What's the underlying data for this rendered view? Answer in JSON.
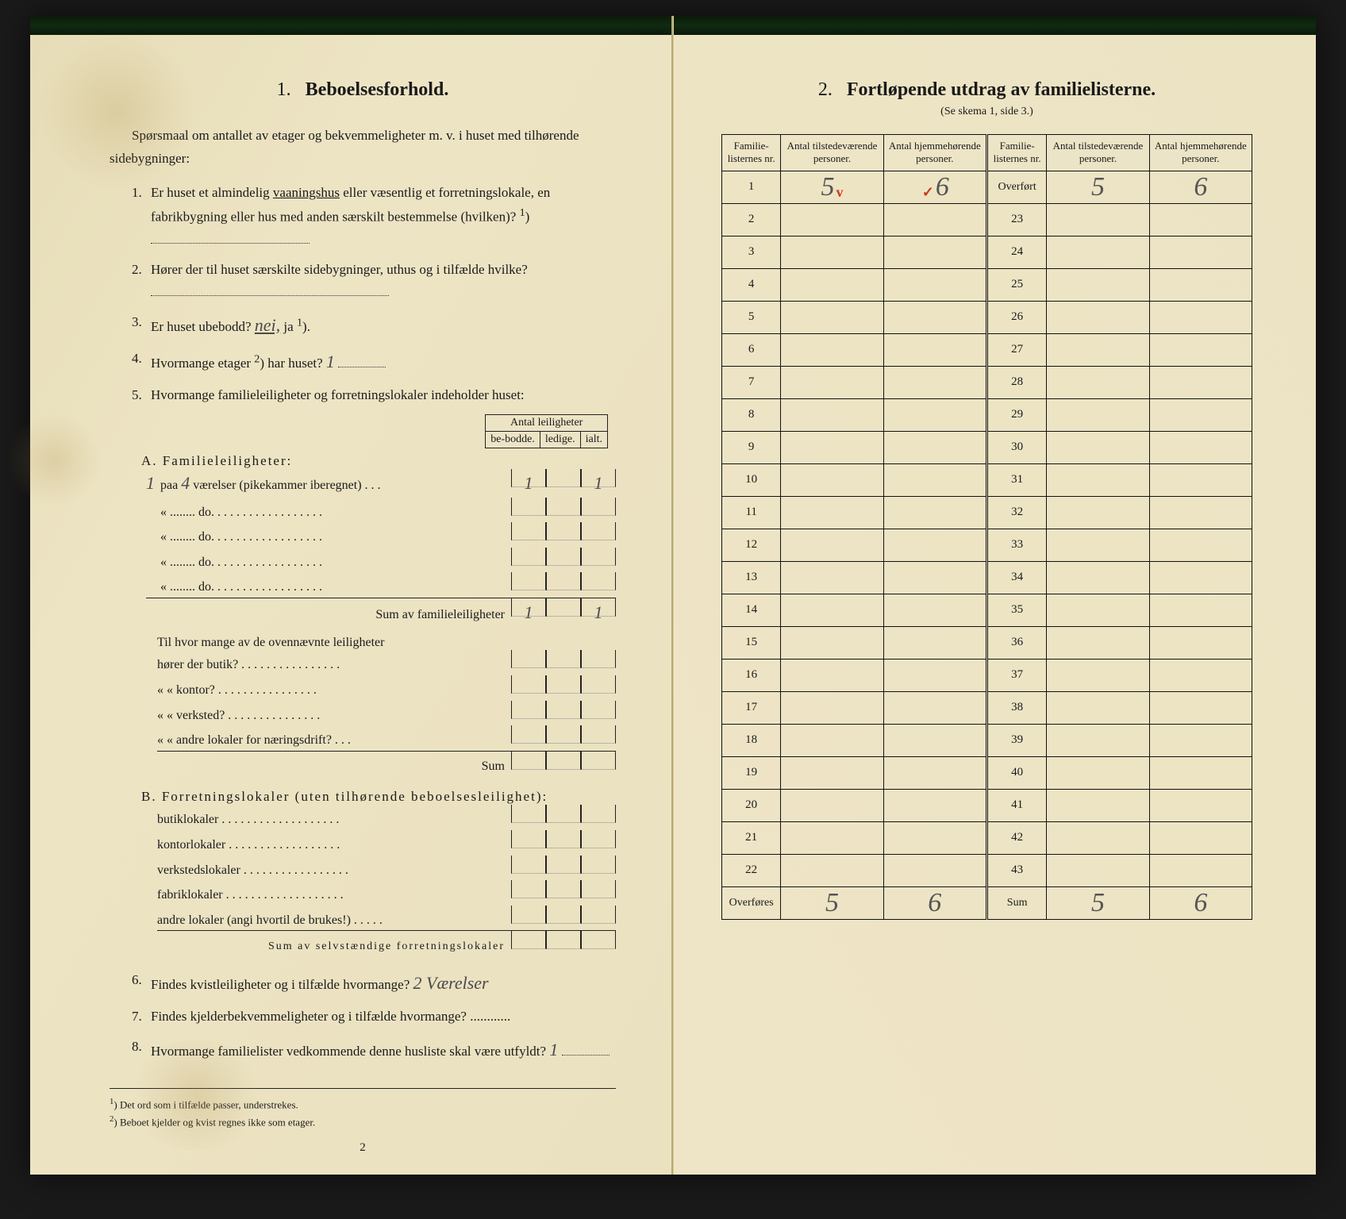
{
  "left": {
    "section_number": "1.",
    "section_title": "Beboelsesforhold.",
    "intro": "Spørsmaal om antallet av etager og bekvemmeligheter m. v. i huset med tilhørende sidebygninger:",
    "q1": {
      "num": "1.",
      "text_a": "Er huset et almindelig ",
      "underlined": "vaaningshus",
      "text_b": " eller væsentlig et forretnings­lokale, en fabrikbygning eller hus med anden særskilt bestemmelse (hvilken)? ",
      "sup": "1",
      "dots": ")"
    },
    "q2": {
      "num": "2.",
      "text": "Hører der til huset særskilte sidebygninger, uthus og i tilfælde hvilke?"
    },
    "q3": {
      "num": "3.",
      "text_a": "Er huset ubebodd?  ",
      "hand_nei": "nei,",
      "text_b": "  ja ",
      "sup": "1",
      "text_c": ")."
    },
    "q4": {
      "num": "4.",
      "text_a": "Hvormange etager ",
      "sup": "2",
      "text_b": ") har huset? ",
      "hand": "1"
    },
    "q5": {
      "num": "5.",
      "text": "Hvormange familieleiligheter og forretningslokaler indeholder huset:"
    },
    "inner_header": {
      "span": "Antal leiligheter",
      "c1": "be-bodde.",
      "c2": "ledige.",
      "c3": "ialt."
    },
    "A_title": "A. Familieleiligheter:",
    "A_rows": [
      {
        "pre": "1",
        "label_a": "paa ",
        "hand_mid": "4",
        "label_b": " værelser (pikekammer iberegnet) . . .",
        "c1": "1",
        "c3": "1"
      },
      {
        "label": "«  ........  do.  . . . . . . . . . . . . . . . . ."
      },
      {
        "label": "«  ........  do.  . . . . . . . . . . . . . . . . ."
      },
      {
        "label": "«  ........  do.  . . . . . . . . . . . . . . . . ."
      },
      {
        "label": "«  ........  do.  . . . . . . . . . . . . . . . . ."
      }
    ],
    "A_sum": {
      "label": "Sum av familieleiligheter",
      "c1": "1",
      "c3": "1"
    },
    "A_extra_intro": "Til hvor mange av de ovennævnte leiligheter",
    "A_extra": [
      "hører der butik? . . . . . . . . . . . . . . . .",
      "«    «  kontor? . . . . . . . . . . . . . . . .",
      "«    «  verksted? . . . . . . . . . . . . . . .",
      "«    «  andre lokaler for næringsdrift? . . ."
    ],
    "A_extra_sum": "Sum",
    "B_title": "B. Forretningslokaler (uten tilhørende beboelsesleilighet):",
    "B_rows": [
      "butiklokaler . . . . . . . . . . . . . . . . . . .",
      "kontorlokaler . . . . . . . . . . . . . . . . . .",
      "verkstedslokaler . . . . . . . . . . . . . . . . .",
      "fabriklokaler . . . . . . . . . . . . . . . . . . .",
      "andre lokaler (angi hvortil de brukes!) . . . . ."
    ],
    "B_sum": "Sum av selvstændige forretningslokaler",
    "q6": {
      "num": "6.",
      "text": "Findes kvistleiligheter og i tilfælde hvormange? ",
      "hand": "2 Værelser"
    },
    "q7": {
      "num": "7.",
      "text": "Findes kjelderbekvemmeligheter og i tilfælde hvormange? ............"
    },
    "q8": {
      "num": "8.",
      "text_a": "Hvormange familielister vedkommende denne husliste skal være utfyldt? ",
      "hand": "1"
    },
    "fn1": {
      "sup": "1",
      "text": ") Det ord som i tilfælde passer, understrekes."
    },
    "fn2": {
      "sup": "2",
      "text": ") Beboet kjelder og kvist regnes ikke som etager."
    },
    "page_num": "2"
  },
  "right": {
    "section_number": "2.",
    "section_title": "Fortløpende utdrag av familielisterne.",
    "subtitle": "(Se skema 1, side 3.)",
    "headers": {
      "nr": "Familie-listernes nr.",
      "tilstede": "Antal tilstedeværende personer.",
      "hjemme": "Antal hjemmehørende personer."
    },
    "left_rows_nr": [
      "1",
      "2",
      "3",
      "4",
      "5",
      "6",
      "7",
      "8",
      "9",
      "10",
      "11",
      "12",
      "13",
      "14",
      "15",
      "16",
      "17",
      "18",
      "19",
      "20",
      "21",
      "22"
    ],
    "right_rows_nr": [
      "Overført",
      "23",
      "24",
      "25",
      "26",
      "27",
      "28",
      "29",
      "30",
      "31",
      "32",
      "33",
      "34",
      "35",
      "36",
      "37",
      "38",
      "39",
      "40",
      "41",
      "42",
      "43"
    ],
    "row1": {
      "tilstede": "5",
      "tilstede_tick": "v",
      "hjemme": "6",
      "hjemme_tick": "✓"
    },
    "overfort": {
      "tilstede": "5",
      "hjemme": "6"
    },
    "footer_left_label": "Overføres",
    "footer_right_label": "Sum",
    "footer": {
      "l_t": "5",
      "l_h": "6",
      "r_t": "5",
      "r_h": "6"
    }
  },
  "colors": {
    "ink": "#1a1a1a",
    "paper": "#ede4c4",
    "hand": "#4a4a4a",
    "red": "#c53a20"
  }
}
